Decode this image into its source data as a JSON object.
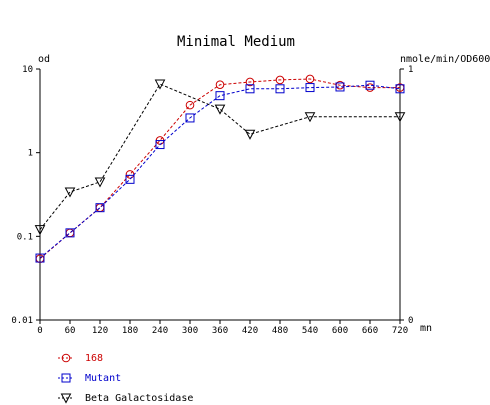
{
  "chart_data": {
    "type": "line",
    "title": "Minimal Medium",
    "y_left_label": "od",
    "y_right_label": "nmole/min/OD600",
    "x_unit_label": "mn",
    "x_ticks": [
      0,
      60,
      120,
      180,
      240,
      300,
      360,
      420,
      480,
      540,
      600,
      660,
      720
    ],
    "x_range": [
      0,
      720
    ],
    "y_left_scale": "log",
    "y_left_range": [
      0.01,
      10
    ],
    "y_left_ticks": [
      {
        "value": 10,
        "label": "10"
      },
      {
        "value": 1,
        "label": "1"
      },
      {
        "value": 0.1,
        "label": "0.1"
      },
      {
        "value": 0.01,
        "label": "0.01"
      }
    ],
    "y_right_range": [
      0,
      1
    ],
    "y_right_ticks": [
      {
        "value": 1,
        "label": "1"
      },
      {
        "value": 0,
        "label": "0"
      }
    ],
    "grid": false,
    "legend_placement": "bottom-left",
    "series": [
      {
        "name": "168",
        "color": "#cc0000",
        "marker": "circle",
        "axis": "left",
        "x": [
          0,
          60,
          120,
          180,
          240,
          300,
          360,
          420,
          480,
          540,
          600,
          660,
          720
        ],
        "y": [
          0.054,
          0.11,
          0.22,
          0.55,
          1.4,
          3.7,
          6.5,
          7.0,
          7.4,
          7.6,
          6.4,
          6.0,
          6.0
        ]
      },
      {
        "name": "Mutant",
        "color": "#0000cc",
        "marker": "square",
        "axis": "left",
        "x": [
          0,
          60,
          120,
          180,
          240,
          300,
          360,
          420,
          480,
          540,
          600,
          660,
          720
        ],
        "y": [
          0.055,
          0.11,
          0.22,
          0.48,
          1.25,
          2.6,
          4.8,
          5.8,
          5.8,
          6.0,
          6.1,
          6.4,
          5.8
        ]
      },
      {
        "name": "Beta Galactosidase",
        "color": "#000000",
        "marker": "triangle-down",
        "axis": "right",
        "x": [
          0,
          60,
          120,
          240,
          360,
          420,
          540,
          720
        ],
        "y": [
          0.36,
          0.51,
          0.55,
          0.94,
          0.84,
          0.74,
          0.81,
          0.81
        ]
      }
    ]
  }
}
